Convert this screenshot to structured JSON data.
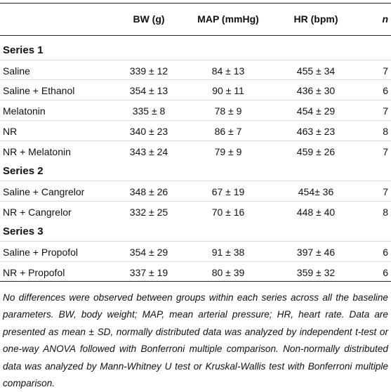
{
  "table": {
    "header": [
      "BW (g)",
      "MAP (mmHg)",
      "HR (bpm)",
      "n"
    ],
    "sections": [
      {
        "title": "Series 1",
        "rows": [
          [
            "Saline",
            "339 ± 12",
            "84 ± 13",
            "455 ± 34",
            7
          ],
          [
            "Saline + Ethanol",
            "354 ± 13",
            "90 ± 11",
            "436 ± 30",
            6
          ],
          [
            "Melatonin",
            "335 ± 8",
            "78 ± 9",
            "454 ± 29",
            7
          ],
          [
            "NR",
            "340 ± 23",
            "86 ± 7",
            "463 ± 23",
            8
          ],
          [
            "NR + Melatonin",
            "343 ± 24",
            "79 ± 9",
            "459 ± 26",
            7
          ]
        ]
      },
      {
        "title": "Series 2",
        "rows": [
          [
            "Saline + Cangrelor",
            "348 ± 26",
            "67 ± 19",
            "454± 36",
            7
          ],
          [
            "NR + Cangrelor",
            "332 ± 25",
            "70 ± 16",
            "448 ± 40",
            8
          ]
        ]
      },
      {
        "title": "Series 3",
        "rows": [
          [
            "Saline + Propofol",
            "354 ± 29",
            "91 ± 38",
            "397 ± 46",
            6
          ],
          [
            "NR + Propofol",
            "337 ± 19",
            "80 ± 39",
            "359 ± 32",
            6
          ]
        ]
      }
    ],
    "footnote": "No differences were observed between groups within each series across all the baseline parameters. BW, body weight; MAP, mean arterial pressure; HR, heart rate. Data are presented as mean ± SD, normally distributed data was analyzed by independent t-test or one-way ANOVA followed with Bonferroni multiple comparison. Non-normally distributed data was analyzed by Mann-Whitney U test or Kruskal-Wallis test with Bonferroni multiple comparison."
  }
}
